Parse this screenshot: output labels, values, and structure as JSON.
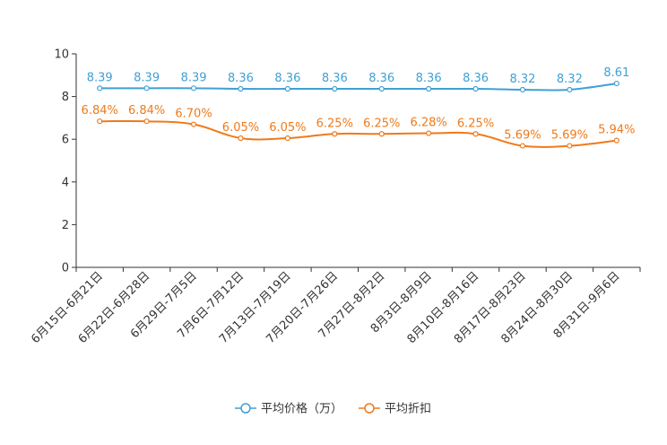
{
  "chart_data": {
    "type": "line",
    "categories": [
      "6月15日-6月21日",
      "6月22日-6月28日",
      "6月29日-7月5日",
      "7月6日-7月12日",
      "7月13日-7月19日",
      "7月20日-7月26日",
      "7月27日-8月2日",
      "8月3日-8月9日",
      "8月10日-8月16日",
      "8月17日-8月23日",
      "8月24日-8月30日",
      "8月31日-9月6日"
    ],
    "series": [
      {
        "name": "平均价格（万）",
        "color": "#3fa0d6",
        "values": [
          8.39,
          8.39,
          8.39,
          8.36,
          8.36,
          8.36,
          8.36,
          8.36,
          8.36,
          8.32,
          8.32,
          8.61
        ],
        "labels": [
          "8.39",
          "8.39",
          "8.39",
          "8.36",
          "8.36",
          "8.36",
          "8.36",
          "8.36",
          "8.36",
          "8.32",
          "8.32",
          "8.61"
        ]
      },
      {
        "name": "平均折扣",
        "color": "#ef7a1a",
        "values": [
          6.84,
          6.84,
          6.7,
          6.05,
          6.05,
          6.25,
          6.25,
          6.28,
          6.25,
          5.69,
          5.69,
          5.94
        ],
        "labels": [
          "6.84%",
          "6.84%",
          "6.70%",
          "6.05%",
          "6.05%",
          "6.25%",
          "6.25%",
          "6.28%",
          "6.25%",
          "5.69%",
          "5.69%",
          "5.94%"
        ]
      }
    ],
    "ylim": [
      0,
      10
    ],
    "yticks": [
      "0",
      "2",
      "4",
      "6",
      "8",
      "10"
    ],
    "legend_position": "bottom-center"
  }
}
